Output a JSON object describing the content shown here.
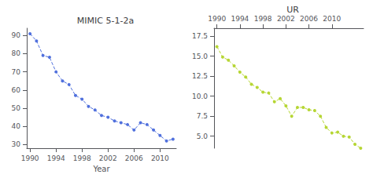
{
  "chart_data": [
    {
      "type": "line",
      "title": "MIMIC 5-1-2a",
      "xlabel": "Year",
      "x": [
        1990,
        1991,
        1992,
        1993,
        1994,
        1995,
        1996,
        1997,
        1998,
        1999,
        2000,
        2001,
        2002,
        2003,
        2004,
        2005,
        2006,
        2007,
        2008,
        2009,
        2010,
        2011,
        2012
      ],
      "values": [
        91,
        87,
        79,
        78,
        70,
        65,
        63,
        57,
        55,
        51,
        49,
        46,
        45,
        43,
        42,
        41,
        38,
        42,
        41,
        38,
        35,
        32,
        33
      ],
      "xlim": [
        1989.5,
        2012.5
      ],
      "xticks": [
        1990,
        1994,
        1998,
        2002,
        2006,
        2010
      ],
      "ylim": [
        28,
        94
      ],
      "yticks": [
        30,
        40,
        50,
        60,
        70,
        80,
        90
      ],
      "line_style": "dashed",
      "marker": "circle",
      "grid": false
    },
    {
      "type": "line",
      "title": "UR",
      "x": [
        1990,
        1991,
        1992,
        1993,
        1994,
        1995,
        1996,
        1997,
        1998,
        1999,
        2000,
        2001,
        2002,
        2003,
        2004,
        2005,
        2006,
        2007,
        2008,
        2009,
        2010,
        2011,
        2012,
        2013,
        2014,
        2015
      ],
      "values": [
        16.2,
        14.9,
        14.5,
        13.8,
        13.0,
        12.4,
        11.5,
        11.1,
        10.5,
        10.4,
        9.3,
        9.7,
        8.8,
        7.5,
        8.6,
        8.6,
        8.3,
        8.2,
        7.5,
        6.1,
        5.4,
        5.5,
        5.0,
        4.9,
        4.0,
        3.5
      ],
      "xlim": [
        1989.5,
        2015.5
      ],
      "xticks": [
        1990,
        1994,
        1998,
        2002,
        2006,
        2010
      ],
      "ylim": [
        3.5,
        18.5
      ],
      "yticks": [
        {
          "value": 5,
          "label": "5.0"
        },
        7.5,
        {
          "value": 10,
          "label": "10.0"
        },
        12.5,
        {
          "value": 15,
          "label": "15.0"
        },
        17.5
      ],
      "line_style": "dashed",
      "marker": "circle",
      "grid": false
    }
  ]
}
